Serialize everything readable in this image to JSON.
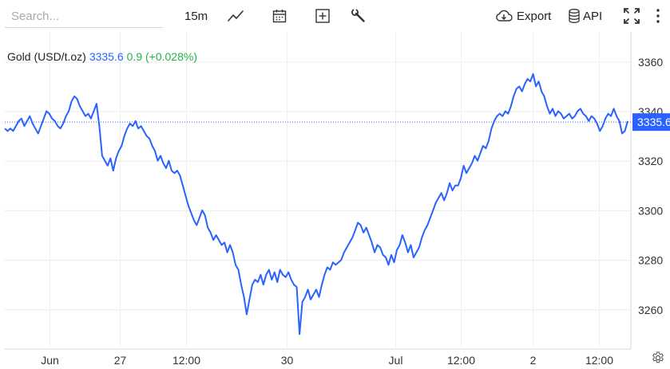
{
  "toolbar": {
    "search_placeholder": "Search...",
    "interval": "15m",
    "export_label": "Export",
    "api_label": "API"
  },
  "legend": {
    "symbol": "Gold (USD/t.oz)",
    "price": "3335.6",
    "change": "0.9 (+0.028%)"
  },
  "colors": {
    "line": "#2962ff",
    "change_positive": "#21b24b",
    "last_price_bg": "#2962ff"
  },
  "chart_data": {
    "type": "line",
    "title": "",
    "ylim": [
      3244,
      3372
    ],
    "y_ticks": [
      3260,
      3280,
      3300,
      3320,
      3340,
      3360
    ],
    "x_tick_labels": [
      "Jun",
      "27",
      "12:00",
      "30",
      "Jul",
      "12:00",
      "2",
      "12:00"
    ],
    "grid": true,
    "last_price_label": "3335.6",
    "series": [
      {
        "values": [
          3333,
          3332,
          3333,
          3332,
          3334,
          3336,
          3337,
          3334,
          3336,
          3338,
          3335,
          3333,
          3331,
          3334,
          3337,
          3340,
          3339,
          3337,
          3336,
          3334,
          3333,
          3335,
          3338,
          3340,
          3344,
          3346,
          3345,
          3342,
          3340,
          3338,
          3339,
          3337,
          3340,
          3343,
          3334,
          3322,
          3320,
          3318,
          3321,
          3316,
          3321,
          3324,
          3326,
          3330,
          3333,
          3335,
          3334,
          3336,
          3333,
          3334,
          3332,
          3330,
          3329,
          3326,
          3324,
          3320,
          3322,
          3319,
          3317,
          3320,
          3316,
          3315,
          3316,
          3314,
          3310,
          3306,
          3302,
          3299,
          3296,
          3294,
          3297,
          3300,
          3298,
          3293,
          3291,
          3288,
          3290,
          3288,
          3286,
          3287,
          3283,
          3286,
          3283,
          3278,
          3276,
          3270,
          3265,
          3258,
          3264,
          3270,
          3272,
          3271,
          3274,
          3270,
          3274,
          3276,
          3272,
          3275,
          3271,
          3276,
          3274,
          3273,
          3275,
          3272,
          3270,
          3269,
          3250,
          3263,
          3265,
          3268,
          3264,
          3266,
          3268,
          3265,
          3270,
          3274,
          3277,
          3276,
          3279,
          3278,
          3279,
          3280,
          3283,
          3285,
          3287,
          3289,
          3292,
          3295,
          3294,
          3291,
          3293,
          3290,
          3287,
          3283,
          3286,
          3285,
          3282,
          3281,
          3278,
          3282,
          3279,
          3284,
          3286,
          3290,
          3287,
          3283,
          3286,
          3281,
          3283,
          3285,
          3289,
          3292,
          3294,
          3297,
          3300,
          3303,
          3305,
          3307,
          3304,
          3307,
          3311,
          3308,
          3310,
          3310,
          3313,
          3318,
          3315,
          3317,
          3319,
          3322,
          3320,
          3323,
          3326,
          3325,
          3328,
          3333,
          3336,
          3338,
          3339,
          3338,
          3340,
          3339,
          3342,
          3346,
          3349,
          3350,
          3348,
          3351,
          3353,
          3352,
          3355,
          3350,
          3352,
          3348,
          3346,
          3342,
          3339,
          3341,
          3338,
          3340,
          3339,
          3337,
          3338,
          3339,
          3337,
          3338,
          3340,
          3341,
          3339,
          3338,
          3336,
          3338,
          3337,
          3335,
          3332,
          3334,
          3337,
          3339,
          3338,
          3341,
          3338,
          3336,
          3331,
          3332,
          3336
        ]
      }
    ]
  }
}
